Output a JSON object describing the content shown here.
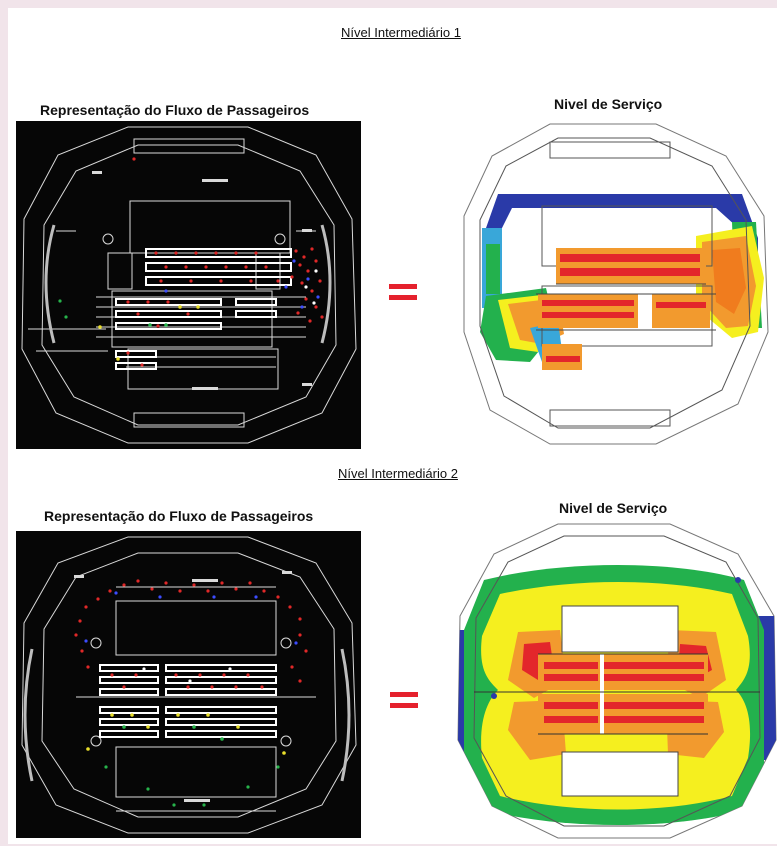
{
  "levels": [
    {
      "title": "Nível Intermediário 1",
      "left_heading": "Representação do Fluxo de Passageiros",
      "right_heading": "Nivel de Serviço"
    },
    {
      "title": "Nível Intermediário 2",
      "left_heading": "Representação do Fluxo de Passageiros",
      "right_heading": "Nivel de Serviço"
    }
  ],
  "colors": {
    "page_background": "#f1e4ea",
    "flow_background": "#060606",
    "equals_sign": "#e5212d",
    "service_levels": [
      "#2a3aa8",
      "#39a7d9",
      "#23b14d",
      "#f5ef1f",
      "#f29a2e",
      "#f07c1e",
      "#e3262b"
    ]
  }
}
